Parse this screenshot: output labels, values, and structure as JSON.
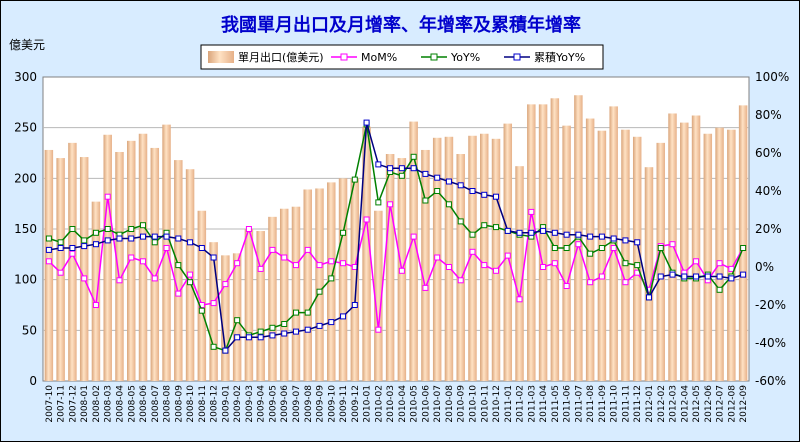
{
  "chart_data": {
    "type": "bar+line",
    "title": "我國單月出口及月增率、年增率及累積年增率",
    "ylabel": "億美元",
    "ylim": [
      0,
      300
    ],
    "yticks": [
      0,
      50,
      100,
      150,
      200,
      250,
      300
    ],
    "y2lim": [
      -60,
      100
    ],
    "y2ticks": [
      "-60%",
      "-40%",
      "-20%",
      "0%",
      "20%",
      "40%",
      "60%",
      "80%",
      "100%"
    ],
    "y2tick_values": [
      -60,
      -40,
      -20,
      0,
      20,
      40,
      60,
      80,
      100
    ],
    "grid": true,
    "legend_position": "top",
    "categories": [
      "2007-10",
      "2007-11",
      "2007-12",
      "2008-01",
      "2008-02",
      "2008-03",
      "2008-04",
      "2008-05",
      "2008-06",
      "2008-07",
      "2008-08",
      "2008-09",
      "2008-10",
      "2008-11",
      "2008-12",
      "2009-01",
      "2009-02",
      "2009-03",
      "2009-04",
      "2009-05",
      "2009-06",
      "2009-07",
      "2009-08",
      "2009-09",
      "2009-10",
      "2009-11",
      "2009-12",
      "2010-01",
      "2010-02",
      "2010-03",
      "2010-04",
      "2010-05",
      "2010-06",
      "2010-07",
      "2010-08",
      "2010-09",
      "2010-10",
      "2010-11",
      "2010-12",
      "2011-01",
      "2011-02",
      "2011-03",
      "2011-04",
      "2011-05",
      "2011-06",
      "2011-07",
      "2011-08",
      "2011-09",
      "2011-10",
      "2011-11",
      "2011-12",
      "2012-01",
      "2012-02",
      "2012-03",
      "2012-04",
      "2012-05",
      "2012-06",
      "2012-07",
      "2012-08",
      "2012-09"
    ],
    "bars": {
      "name": "單月出口(億美元)",
      "color": "#f2c29a",
      "values": [
        228,
        220,
        235,
        221,
        177,
        243,
        226,
        237,
        244,
        230,
        253,
        218,
        209,
        168,
        137,
        124,
        126,
        150,
        148,
        162,
        170,
        172,
        189,
        190,
        196,
        200,
        200,
        251,
        168,
        224,
        220,
        256,
        228,
        240,
        241,
        224,
        242,
        244,
        239,
        254,
        212,
        273,
        273,
        279,
        252,
        282,
        259,
        247,
        271,
        248,
        241,
        211,
        235,
        264,
        255,
        262,
        244,
        250,
        248,
        272
      ]
    },
    "series": [
      {
        "name": "MoM%",
        "color": "#ff00ff",
        "axis": "right",
        "values": [
          3,
          -3,
          7,
          -6,
          -20,
          37,
          -7,
          5,
          3,
          -6,
          10,
          -14,
          -4,
          -20,
          -19,
          -9,
          2,
          20,
          -1,
          9,
          5,
          1,
          9,
          1,
          3,
          2,
          0,
          25,
          -33,
          33,
          -2,
          16,
          -11,
          5,
          0,
          -7,
          8,
          1,
          -2,
          6,
          -17,
          29,
          0,
          2,
          -10,
          12,
          -8,
          -5,
          10,
          -8,
          -3,
          -12,
          11,
          12,
          -3,
          3,
          -7,
          2,
          -1,
          10
        ]
      },
      {
        "name": "YoY%",
        "color": "#008000",
        "axis": "right",
        "values": [
          15,
          13,
          20,
          14,
          18,
          20,
          17,
          20,
          22,
          13,
          18,
          1,
          -8,
          -23,
          -42,
          -44,
          -28,
          -36,
          -34,
          -32,
          -30,
          -24,
          -24,
          -13,
          -6,
          18,
          46,
          75,
          34,
          50,
          48,
          58,
          35,
          40,
          33,
          24,
          17,
          22,
          21,
          19,
          17,
          16,
          21,
          10,
          10,
          16,
          7,
          10,
          14,
          2,
          1,
          -16,
          10,
          -3,
          -6,
          -6,
          -4,
          -12,
          -5,
          10
        ]
      },
      {
        "name": "累積YoY%",
        "color": "#000080",
        "axis": "right",
        "values": [
          9,
          10,
          10,
          11,
          12,
          14,
          15,
          15,
          16,
          16,
          16,
          15,
          13,
          10,
          5,
          -44,
          -37,
          -37,
          -37,
          -36,
          -35,
          -34,
          -33,
          -31,
          -29,
          -26,
          -20,
          76,
          54,
          52,
          52,
          52,
          49,
          47,
          45,
          43,
          40,
          38,
          37,
          19,
          18,
          18,
          19,
          18,
          17,
          17,
          16,
          16,
          15,
          14,
          13,
          -16,
          -5,
          -4,
          -5,
          -5,
          -5,
          -5,
          -6,
          -4
        ]
      }
    ]
  }
}
